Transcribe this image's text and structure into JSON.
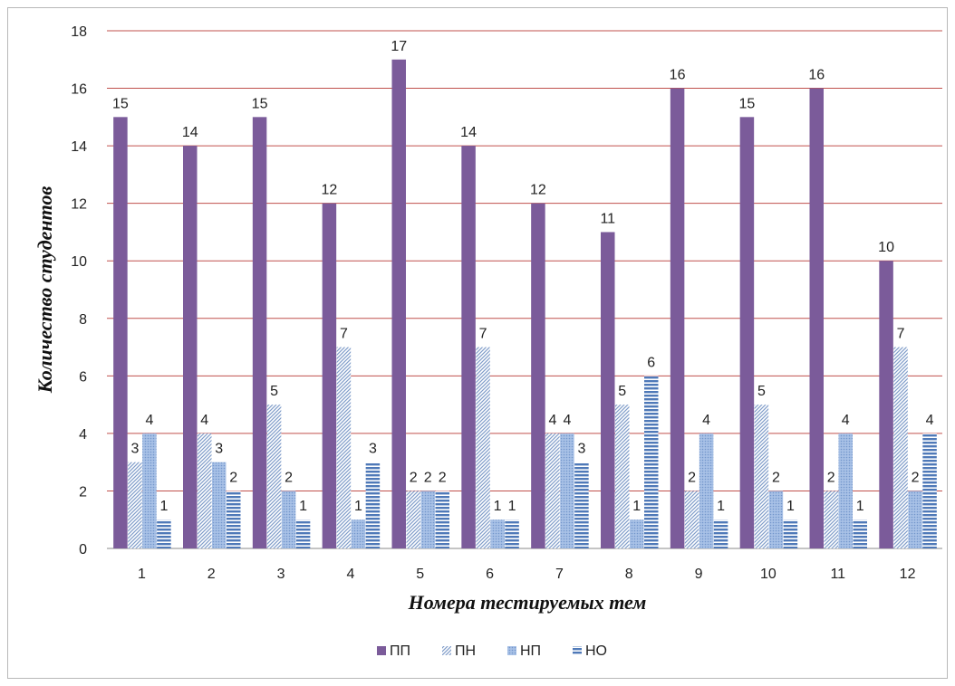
{
  "chart_data": {
    "type": "bar",
    "title": "",
    "xlabel": "Номера тестируемых тем",
    "ylabel": "Количество студентов",
    "categories": [
      "1",
      "2",
      "3",
      "4",
      "5",
      "6",
      "7",
      "8",
      "9",
      "10",
      "11",
      "12"
    ],
    "ylim": [
      0,
      18
    ],
    "yticks": [
      0,
      2,
      4,
      6,
      8,
      10,
      12,
      14,
      16,
      18
    ],
    "grid": true,
    "legend_position": "bottom",
    "series": [
      {
        "name": "ПП",
        "values": [
          15,
          14,
          15,
          12,
          17,
          14,
          12,
          11,
          16,
          15,
          16,
          10
        ],
        "color": "#7b5b9a",
        "pattern": "solid"
      },
      {
        "name": "ПН",
        "values": [
          3,
          4,
          5,
          7,
          2,
          7,
          4,
          5,
          2,
          5,
          2,
          7
        ],
        "color": "#8eaad6",
        "pattern": "diagonal"
      },
      {
        "name": "НП",
        "values": [
          4,
          3,
          2,
          1,
          2,
          1,
          4,
          1,
          4,
          2,
          4,
          2
        ],
        "color": "#95b3e0",
        "pattern": "dotted"
      },
      {
        "name": "НО",
        "values": [
          1,
          2,
          1,
          3,
          2,
          1,
          3,
          6,
          1,
          1,
          1,
          4
        ],
        "color": "#4f79b8",
        "pattern": "horizontal"
      }
    ],
    "colors": {
      "grid": "#c0504d",
      "axis": "#888888"
    }
  }
}
